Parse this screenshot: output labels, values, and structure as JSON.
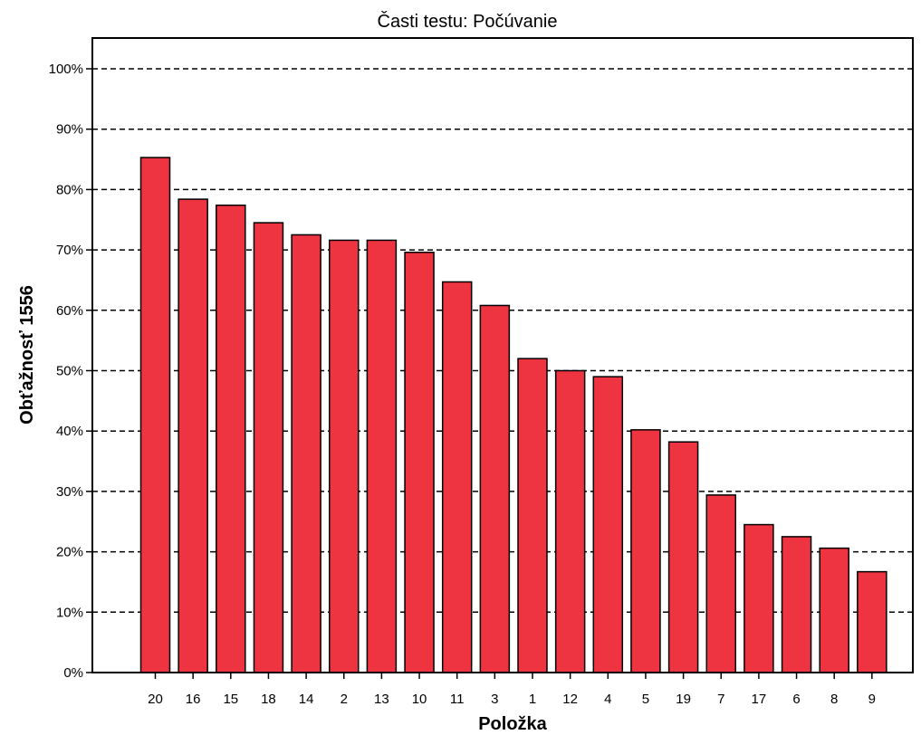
{
  "chart_data": {
    "type": "bar",
    "title": "Časti testu: Počúvanie",
    "xlabel": "Položka",
    "ylabel": "Obťažnosť 1556",
    "categories": [
      "20",
      "16",
      "15",
      "18",
      "14",
      "2",
      "13",
      "10",
      "11",
      "3",
      "1",
      "12",
      "4",
      "5",
      "19",
      "7",
      "17",
      "6",
      "8",
      "9"
    ],
    "values": [
      85.3,
      78.4,
      77.4,
      74.5,
      72.5,
      71.6,
      71.6,
      69.6,
      64.7,
      60.8,
      52.0,
      50.0,
      49.0,
      40.2,
      38.2,
      29.4,
      24.5,
      22.5,
      20.6,
      16.7
    ],
    "ylim": [
      0,
      100
    ],
    "yticks": [
      "0%",
      "10%",
      "20%",
      "30%",
      "40%",
      "50%",
      "60%",
      "70%",
      "80%",
      "90%",
      "100%"
    ],
    "grid": "horizontal dashed",
    "bar_color": "#ee3440",
    "bar_edge_color": "#000000"
  }
}
